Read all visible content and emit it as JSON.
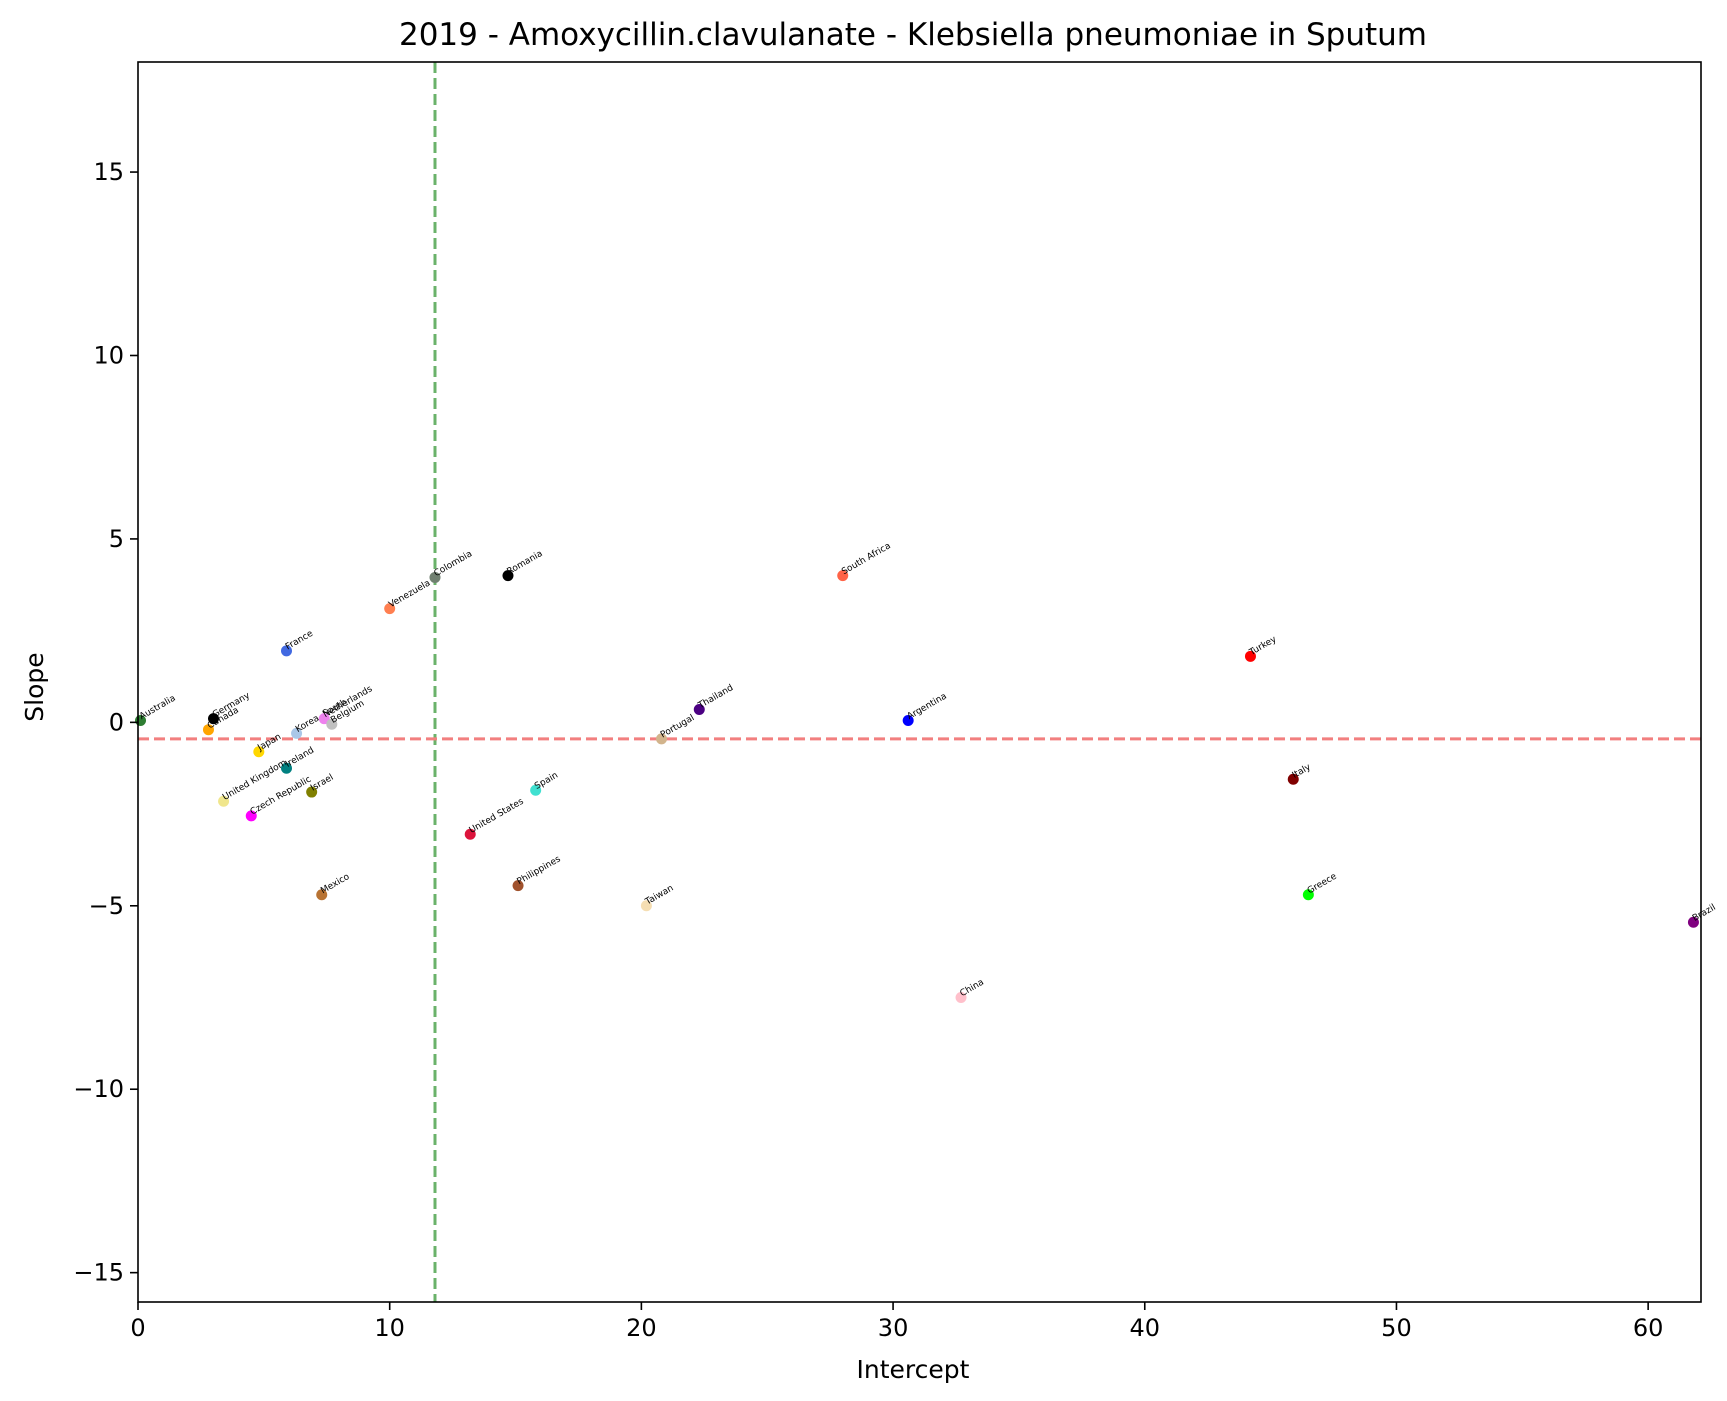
{
  "chart_data": {
    "type": "scatter",
    "title": "2019 - Amoxycillin.clavulanate - Klebsiella pneumoniae in Sputum",
    "xlabel": "Intercept",
    "ylabel": "Slope",
    "xlim": [
      0,
      62.1
    ],
    "ylim": [
      -15.8,
      18.0
    ],
    "xticks": [
      0,
      10,
      20,
      30,
      40,
      50,
      60
    ],
    "xtick_labels": [
      "0",
      "10",
      "20",
      "30",
      "40",
      "50",
      "60"
    ],
    "yticks": [
      -15,
      -10,
      -5,
      0,
      5,
      10,
      15
    ],
    "ytick_labels": [
      "−15",
      "−10",
      "−5",
      "0",
      "5",
      "10",
      "15"
    ],
    "grid": false,
    "reference_lines": [
      {
        "orientation": "vertical",
        "value": 11.8,
        "color": "#6ab26a",
        "style": "dashed"
      },
      {
        "orientation": "horizontal",
        "value": -0.45,
        "color": "#f27f7f",
        "style": "dashed"
      }
    ],
    "points": [
      {
        "label": "Australia",
        "x": 0.1,
        "y": 0.05,
        "color": "#2e7d32"
      },
      {
        "label": "Germany",
        "x": 3.0,
        "y": 0.1,
        "color": "#000000"
      },
      {
        "label": "Canada",
        "x": 2.8,
        "y": -0.2,
        "color": "#ffa500"
      },
      {
        "label": "France",
        "x": 5.9,
        "y": 1.95,
        "color": "#4169e1"
      },
      {
        "label": "Japan",
        "x": 4.8,
        "y": -0.8,
        "color": "#ffd700"
      },
      {
        "label": "Korea, South",
        "x": 6.3,
        "y": -0.3,
        "color": "#a9c7e8"
      },
      {
        "label": "Netherlands",
        "x": 7.4,
        "y": 0.1,
        "color": "#ee82ee"
      },
      {
        "label": "Belgium",
        "x": 7.7,
        "y": -0.05,
        "color": "#c0c0c0"
      },
      {
        "label": "Ireland",
        "x": 5.9,
        "y": -1.25,
        "color": "#008080"
      },
      {
        "label": "United Kingdom",
        "x": 3.4,
        "y": -2.15,
        "color": "#f0e68c"
      },
      {
        "label": "Israel",
        "x": 6.9,
        "y": -1.9,
        "color": "#808000"
      },
      {
        "label": "Czech Republic",
        "x": 4.5,
        "y": -2.55,
        "color": "#ff00ff"
      },
      {
        "label": "Mexico",
        "x": 7.3,
        "y": -4.7,
        "color": "#b87333"
      },
      {
        "label": "Venezuela",
        "x": 10.0,
        "y": 3.1,
        "color": "#ff7f50"
      },
      {
        "label": "Colombia",
        "x": 11.8,
        "y": 3.95,
        "color": "#708070"
      },
      {
        "label": "Romania",
        "x": 14.7,
        "y": 4.0,
        "color": "#000000"
      },
      {
        "label": "United States",
        "x": 13.2,
        "y": -3.05,
        "color": "#dc143c"
      },
      {
        "label": "Spain",
        "x": 15.8,
        "y": -1.85,
        "color": "#40e0d0"
      },
      {
        "label": "Philippines",
        "x": 15.1,
        "y": -4.45,
        "color": "#a0522d"
      },
      {
        "label": "Portugal",
        "x": 20.8,
        "y": -0.45,
        "color": "#d2b48c"
      },
      {
        "label": "Thailand",
        "x": 22.3,
        "y": 0.35,
        "color": "#4b0082"
      },
      {
        "label": "Taiwan",
        "x": 20.2,
        "y": -5.0,
        "color": "#f5deb3"
      },
      {
        "label": "South Africa",
        "x": 28.0,
        "y": 4.0,
        "color": "#ff6347"
      },
      {
        "label": "Argentina",
        "x": 30.6,
        "y": 0.05,
        "color": "#0000ff"
      },
      {
        "label": "China",
        "x": 32.7,
        "y": -7.5,
        "color": "#ffc0cb"
      },
      {
        "label": "Turkey",
        "x": 44.2,
        "y": 1.8,
        "color": "#ff0000"
      },
      {
        "label": "Italy",
        "x": 45.9,
        "y": -1.55,
        "color": "#800000"
      },
      {
        "label": "Greece",
        "x": 46.5,
        "y": -4.7,
        "color": "#00ff00"
      },
      {
        "label": "Brazil",
        "x": 61.8,
        "y": -5.45,
        "color": "#800080"
      }
    ]
  }
}
